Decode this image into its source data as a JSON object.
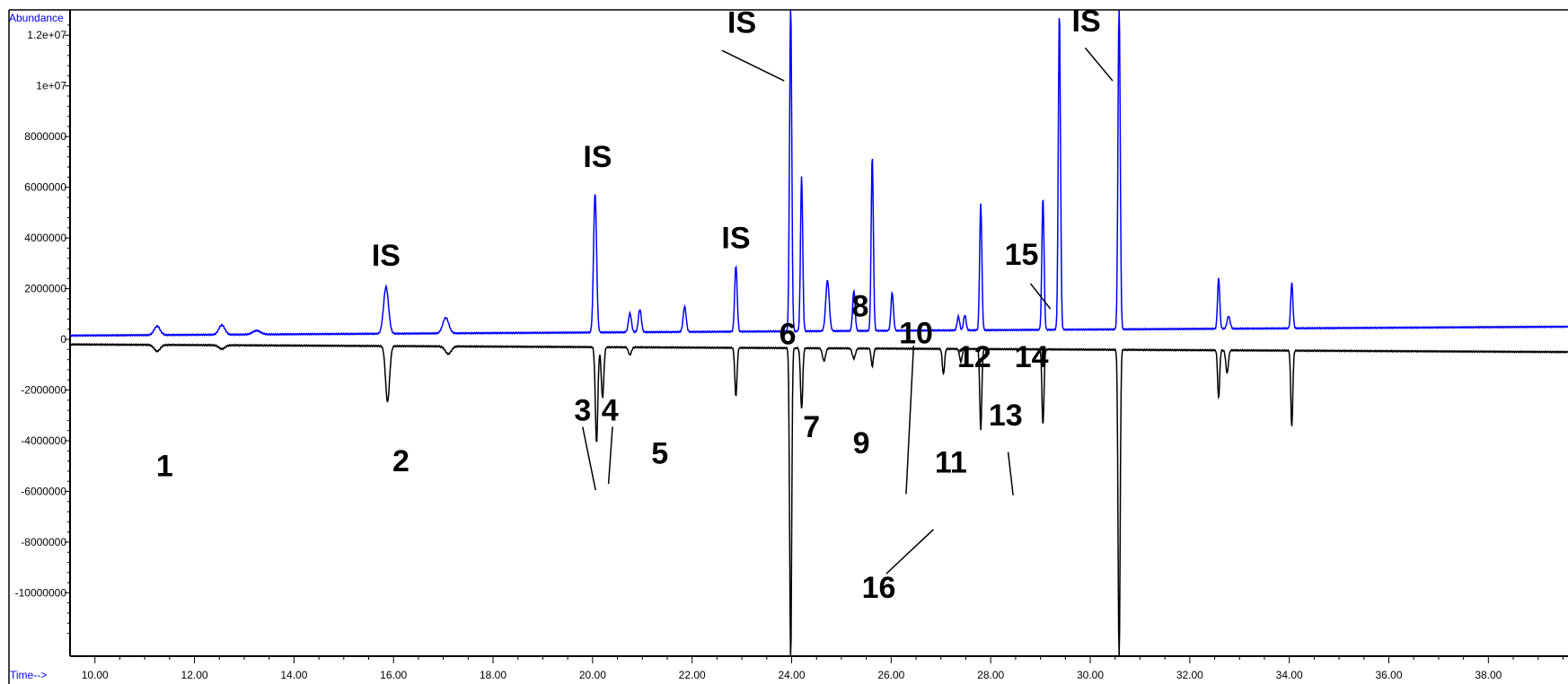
{
  "chart_data": {
    "type": "line",
    "xlabel": "Time-->",
    "ylabel": "Abundance",
    "xlim": [
      9.5,
      39.6
    ],
    "ylim": [
      -12500000,
      13000000
    ],
    "x_ticks": [
      10,
      12,
      14,
      16,
      18,
      20,
      22,
      24,
      26,
      28,
      30,
      32,
      34,
      36,
      38
    ],
    "x_tick_labels": [
      "10.00",
      "12.00",
      "14.00",
      "16.00",
      "18.00",
      "20.00",
      "22.00",
      "24.00",
      "26.00",
      "28.00",
      "30.00",
      "32.00",
      "34.00",
      "36.00",
      "38.00"
    ],
    "y_ticks": [
      12000000,
      10000000,
      8000000,
      6000000,
      4000000,
      2000000,
      0,
      -2000000,
      -4000000,
      -6000000,
      -8000000,
      -10000000
    ],
    "y_tick_labels": [
      "1.2e+07",
      "1e+07",
      "8000000",
      "6000000",
      "4000000",
      "2000000",
      "0",
      "-2000000",
      "-4000000",
      "-6000000",
      "-8000000",
      "-10000000"
    ],
    "grid": false,
    "colors": {
      "upper_trace": "#0000ff",
      "lower_trace": "#000000",
      "axis_title": "#0000ff"
    },
    "series": [
      {
        "baseline_start": 150000,
        "baseline_end": 500000,
        "peaks": [
          {
            "x": 11.25,
            "y": 350000,
            "w": 0.06
          },
          {
            "x": 12.55,
            "y": 380000,
            "w": 0.06
          },
          {
            "x": 13.25,
            "y": 150000,
            "w": 0.08
          },
          {
            "x": 15.85,
            "y": 1850000,
            "w": 0.05
          },
          {
            "x": 17.05,
            "y": 620000,
            "w": 0.06
          },
          {
            "x": 20.05,
            "y": 5500000,
            "w": 0.03
          },
          {
            "x": 20.75,
            "y": 750000,
            "w": 0.03
          },
          {
            "x": 20.95,
            "y": 900000,
            "w": 0.03
          },
          {
            "x": 21.85,
            "y": 1000000,
            "w": 0.03
          },
          {
            "x": 22.88,
            "y": 2600000,
            "w": 0.025
          },
          {
            "x": 23.98,
            "y": 13000000,
            "w": 0.022
          },
          {
            "x": 24.2,
            "y": 6100000,
            "w": 0.022
          },
          {
            "x": 24.72,
            "y": 2000000,
            "w": 0.035
          },
          {
            "x": 25.25,
            "y": 1600000,
            "w": 0.025
          },
          {
            "x": 25.62,
            "y": 6900000,
            "w": 0.022
          },
          {
            "x": 26.02,
            "y": 1500000,
            "w": 0.025
          },
          {
            "x": 27.35,
            "y": 550000,
            "w": 0.025
          },
          {
            "x": 27.48,
            "y": 600000,
            "w": 0.025
          },
          {
            "x": 27.8,
            "y": 5000000,
            "w": 0.022
          },
          {
            "x": 29.05,
            "y": 5200000,
            "w": 0.022
          },
          {
            "x": 29.38,
            "y": 12500000,
            "w": 0.022
          },
          {
            "x": 30.58,
            "y": 13000000,
            "w": 0.022
          },
          {
            "x": 32.58,
            "y": 2000000,
            "w": 0.022
          },
          {
            "x": 32.78,
            "y": 500000,
            "w": 0.03
          },
          {
            "x": 34.05,
            "y": 1800000,
            "w": 0.022
          }
        ]
      },
      {
        "baseline_start": -200000,
        "baseline_end": -500000,
        "peaks": [
          {
            "x": 11.25,
            "y": -250000,
            "w": 0.06
          },
          {
            "x": 12.55,
            "y": -150000,
            "w": 0.06
          },
          {
            "x": 15.88,
            "y": -2200000,
            "w": 0.04
          },
          {
            "x": 17.1,
            "y": -300000,
            "w": 0.06
          },
          {
            "x": 20.08,
            "y": -3800000,
            "w": 0.025
          },
          {
            "x": 20.2,
            "y": -2000000,
            "w": 0.025
          },
          {
            "x": 20.75,
            "y": -300000,
            "w": 0.03
          },
          {
            "x": 22.88,
            "y": -1900000,
            "w": 0.022
          },
          {
            "x": 23.98,
            "y": -12500000,
            "w": 0.02
          },
          {
            "x": 24.2,
            "y": -2400000,
            "w": 0.022
          },
          {
            "x": 24.65,
            "y": -500000,
            "w": 0.03
          },
          {
            "x": 25.25,
            "y": -400000,
            "w": 0.03
          },
          {
            "x": 25.62,
            "y": -700000,
            "w": 0.022
          },
          {
            "x": 27.05,
            "y": -1000000,
            "w": 0.022
          },
          {
            "x": 27.4,
            "y": -500000,
            "w": 0.025
          },
          {
            "x": 27.8,
            "y": -3200000,
            "w": 0.02
          },
          {
            "x": 29.05,
            "y": -3000000,
            "w": 0.02
          },
          {
            "x": 30.58,
            "y": -12500000,
            "w": 0.02
          },
          {
            "x": 32.58,
            "y": -1900000,
            "w": 0.02
          },
          {
            "x": 32.75,
            "y": -900000,
            "w": 0.025
          },
          {
            "x": 34.05,
            "y": -3000000,
            "w": 0.02
          }
        ]
      }
    ],
    "annotations": [
      {
        "text": "IS",
        "x": 15.85,
        "y": 2900000
      },
      {
        "text": "IS",
        "x": 20.1,
        "y": 6800000
      },
      {
        "text": "IS",
        "x": 22.88,
        "y": 3600000
      },
      {
        "text": "IS",
        "x": 23.0,
        "y": 12100000
      },
      {
        "text": "IS",
        "x": 29.92,
        "y": 12150000
      },
      {
        "text": "1",
        "x": 11.4,
        "y": -5400000
      },
      {
        "text": "2",
        "x": 16.15,
        "y": -5200000
      },
      {
        "text": "3",
        "x": 19.8,
        "y": -3200000
      },
      {
        "text": "4",
        "x": 20.35,
        "y": -3200000
      },
      {
        "text": "5",
        "x": 21.35,
        "y": -4900000
      },
      {
        "text": "6",
        "x": 23.92,
        "y": -200000
      },
      {
        "text": "7",
        "x": 24.4,
        "y": -3850000
      },
      {
        "text": "8",
        "x": 25.38,
        "y": 900000
      },
      {
        "text": "9",
        "x": 25.4,
        "y": -4500000
      },
      {
        "text": "10",
        "x": 26.5,
        "y": -150000
      },
      {
        "text": "11",
        "x": 27.2,
        "y": -5250000
      },
      {
        "text": "12",
        "x": 27.67,
        "y": -1100000
      },
      {
        "text": "13",
        "x": 28.3,
        "y": -3400000
      },
      {
        "text": "14",
        "x": 28.82,
        "y": -1100000
      },
      {
        "text": "15",
        "x": 28.62,
        "y": 2950000
      },
      {
        "text": "16",
        "x": 25.75,
        "y": -10200000
      }
    ],
    "pointer_lines": [
      {
        "x1": 22.6,
        "y1": 11400000,
        "x2": 23.85,
        "y2": 10200000
      },
      {
        "x1": 29.9,
        "y1": 11500000,
        "x2": 30.45,
        "y2": 10200000
      },
      {
        "x1": 28.8,
        "y1": 2200000,
        "x2": 29.2,
        "y2": 1200000
      },
      {
        "x1": 19.8,
        "y1": -3450000,
        "x2": 20.06,
        "y2": -5950000
      },
      {
        "x1": 20.4,
        "y1": -3450000,
        "x2": 20.32,
        "y2": -5700000
      },
      {
        "x1": 26.45,
        "y1": -250000,
        "x2": 26.3,
        "y2": -6100000
      },
      {
        "x1": 28.35,
        "y1": -4450000,
        "x2": 28.45,
        "y2": -6150000
      },
      {
        "x1": 25.9,
        "y1": -9250000,
        "x2": 26.85,
        "y2": -7500000
      }
    ]
  }
}
